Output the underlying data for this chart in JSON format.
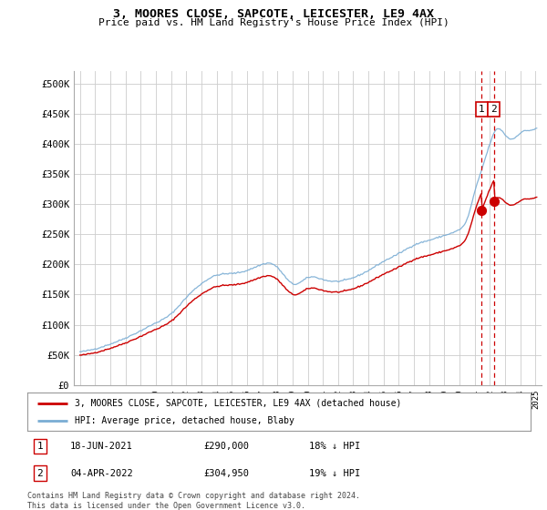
{
  "title": "3, MOORES CLOSE, SAPCOTE, LEICESTER, LE9 4AX",
  "subtitle": "Price paid vs. HM Land Registry's House Price Index (HPI)",
  "background_color": "#ffffff",
  "grid_color": "#cccccc",
  "hpi_color": "#7aadd4",
  "price_color": "#cc0000",
  "vline_color": "#cc0000",
  "ylim": [
    0,
    520000
  ],
  "yticks": [
    0,
    50000,
    100000,
    150000,
    200000,
    250000,
    300000,
    350000,
    400000,
    450000,
    500000
  ],
  "ytick_labels": [
    "£0",
    "£50K",
    "£100K",
    "£150K",
    "£200K",
    "£250K",
    "£300K",
    "£350K",
    "£400K",
    "£450K",
    "£500K"
  ],
  "legend_label_red": "3, MOORES CLOSE, SAPCOTE, LEICESTER, LE9 4AX (detached house)",
  "legend_label_blue": "HPI: Average price, detached house, Blaby",
  "annotation1_label": "1",
  "annotation1_date": "18-JUN-2021",
  "annotation1_price": "£290,000",
  "annotation1_pct": "18% ↓ HPI",
  "annotation1_year": 2021.46,
  "annotation1_value": 290000,
  "annotation2_label": "2",
  "annotation2_date": "04-APR-2022",
  "annotation2_price": "£304,950",
  "annotation2_pct": "19% ↓ HPI",
  "annotation2_year": 2022.25,
  "annotation2_value": 304950,
  "footer": "Contains HM Land Registry data © Crown copyright and database right 2024.\nThis data is licensed under the Open Government Licence v3.0."
}
